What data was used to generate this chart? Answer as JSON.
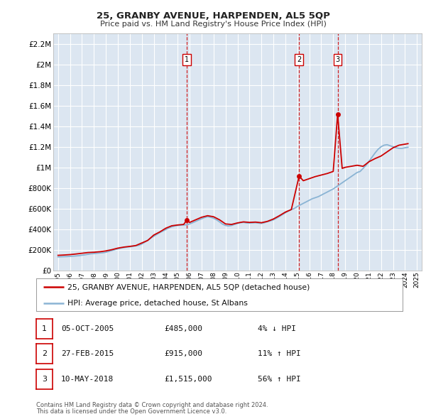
{
  "title": "25, GRANBY AVENUE, HARPENDEN, AL5 5QP",
  "subtitle": "Price paid vs. HM Land Registry's House Price Index (HPI)",
  "legend_line1": "25, GRANBY AVENUE, HARPENDEN, AL5 5QP (detached house)",
  "legend_line2": "HPI: Average price, detached house, St Albans",
  "footnote1": "Contains HM Land Registry data © Crown copyright and database right 2024.",
  "footnote2": "This data is licensed under the Open Government Licence v3.0.",
  "transactions": [
    {
      "num": 1,
      "date": "05-OCT-2005",
      "price": 485000,
      "pct": "4%",
      "dir": "↓",
      "year": 2005.75
    },
    {
      "num": 2,
      "date": "27-FEB-2015",
      "price": 915000,
      "pct": "11%",
      "dir": "↑",
      "year": 2015.15
    },
    {
      "num": 3,
      "date": "10-MAY-2018",
      "price": 1515000,
      "pct": "56%",
      "dir": "↑",
      "year": 2018.37
    }
  ],
  "ylim": [
    0,
    2300000
  ],
  "yticks": [
    0,
    200000,
    400000,
    600000,
    800000,
    1000000,
    1200000,
    1400000,
    1600000,
    1800000,
    2000000,
    2200000
  ],
  "plot_bg": "#dce6f1",
  "grid_color": "#ffffff",
  "red_line_color": "#cc0000",
  "blue_line_color": "#8ab4d4",
  "hpi_data": {
    "years": [
      1995.0,
      1995.25,
      1995.5,
      1995.75,
      1996.0,
      1996.25,
      1996.5,
      1996.75,
      1997.0,
      1997.25,
      1997.5,
      1997.75,
      1998.0,
      1998.25,
      1998.5,
      1998.75,
      1999.0,
      1999.25,
      1999.5,
      1999.75,
      2000.0,
      2000.25,
      2000.5,
      2000.75,
      2001.0,
      2001.25,
      2001.5,
      2001.75,
      2002.0,
      2002.25,
      2002.5,
      2002.75,
      2003.0,
      2003.25,
      2003.5,
      2003.75,
      2004.0,
      2004.25,
      2004.5,
      2004.75,
      2005.0,
      2005.25,
      2005.5,
      2005.75,
      2006.0,
      2006.25,
      2006.5,
      2006.75,
      2007.0,
      2007.25,
      2007.5,
      2007.75,
      2008.0,
      2008.25,
      2008.5,
      2008.75,
      2009.0,
      2009.25,
      2009.5,
      2009.75,
      2010.0,
      2010.25,
      2010.5,
      2010.75,
      2011.0,
      2011.25,
      2011.5,
      2011.75,
      2012.0,
      2012.25,
      2012.5,
      2012.75,
      2013.0,
      2013.25,
      2013.5,
      2013.75,
      2014.0,
      2014.25,
      2014.5,
      2014.75,
      2015.0,
      2015.25,
      2015.5,
      2015.75,
      2016.0,
      2016.25,
      2016.5,
      2016.75,
      2017.0,
      2017.25,
      2017.5,
      2017.75,
      2018.0,
      2018.25,
      2018.5,
      2018.75,
      2019.0,
      2019.25,
      2019.5,
      2019.75,
      2020.0,
      2020.25,
      2020.5,
      2020.75,
      2021.0,
      2021.25,
      2021.5,
      2021.75,
      2022.0,
      2022.25,
      2022.5,
      2022.75,
      2023.0,
      2023.25,
      2023.5,
      2023.75,
      2024.0,
      2024.25
    ],
    "values": [
      130000,
      131000,
      132000,
      133000,
      135000,
      137000,
      139000,
      142000,
      146000,
      150000,
      155000,
      160000,
      162000,
      165000,
      168000,
      170000,
      175000,
      183000,
      192000,
      200000,
      208000,
      215000,
      220000,
      225000,
      228000,
      232000,
      237000,
      242000,
      255000,
      272000,
      292000,
      312000,
      330000,
      348000,
      365000,
      380000,
      395000,
      410000,
      422000,
      430000,
      435000,
      438000,
      440000,
      442000,
      450000,
      462000,
      475000,
      488000,
      500000,
      512000,
      520000,
      515000,
      505000,
      490000,
      470000,
      448000,
      435000,
      430000,
      435000,
      445000,
      455000,
      462000,
      465000,
      460000,
      458000,
      460000,
      462000,
      458000,
      455000,
      462000,
      472000,
      480000,
      490000,
      505000,
      522000,
      540000,
      558000,
      575000,
      590000,
      600000,
      620000,
      635000,
      650000,
      665000,
      680000,
      695000,
      705000,
      715000,
      730000,
      745000,
      760000,
      775000,
      790000,
      810000,
      830000,
      850000,
      870000,
      890000,
      910000,
      930000,
      950000,
      960000,
      990000,
      1020000,
      1060000,
      1100000,
      1140000,
      1175000,
      1200000,
      1215000,
      1220000,
      1210000,
      1200000,
      1190000,
      1185000,
      1185000,
      1190000,
      1195000
    ]
  },
  "price_data": {
    "years": [
      1995.0,
      1995.5,
      1996.0,
      1996.5,
      1997.0,
      1997.5,
      1998.0,
      1998.5,
      1999.0,
      1999.5,
      2000.0,
      2000.5,
      2001.0,
      2001.5,
      2002.0,
      2002.5,
      2003.0,
      2003.5,
      2004.0,
      2004.5,
      2005.0,
      2005.5,
      2005.75,
      2006.0,
      2006.5,
      2007.0,
      2007.5,
      2008.0,
      2008.5,
      2009.0,
      2009.5,
      2010.0,
      2010.5,
      2011.0,
      2011.5,
      2012.0,
      2012.5,
      2013.0,
      2013.5,
      2014.0,
      2014.5,
      2015.15,
      2015.5,
      2016.0,
      2016.5,
      2017.0,
      2017.5,
      2018.0,
      2018.37,
      2018.75,
      2019.0,
      2019.5,
      2020.0,
      2020.5,
      2021.0,
      2021.5,
      2022.0,
      2022.5,
      2023.0,
      2023.5,
      2024.0,
      2024.25
    ],
    "values": [
      145000,
      148000,
      152000,
      158000,
      165000,
      172000,
      175000,
      180000,
      188000,
      200000,
      215000,
      225000,
      232000,
      240000,
      265000,
      290000,
      342000,
      372000,
      408000,
      432000,
      440000,
      445000,
      485000,
      465000,
      490000,
      515000,
      530000,
      520000,
      490000,
      450000,
      445000,
      460000,
      470000,
      465000,
      468000,
      462000,
      475000,
      498000,
      530000,
      565000,
      590000,
      915000,
      870000,
      890000,
      910000,
      925000,
      940000,
      960000,
      1515000,
      990000,
      1000000,
      1010000,
      1020000,
      1010000,
      1055000,
      1085000,
      1110000,
      1150000,
      1190000,
      1215000,
      1225000,
      1230000
    ]
  }
}
